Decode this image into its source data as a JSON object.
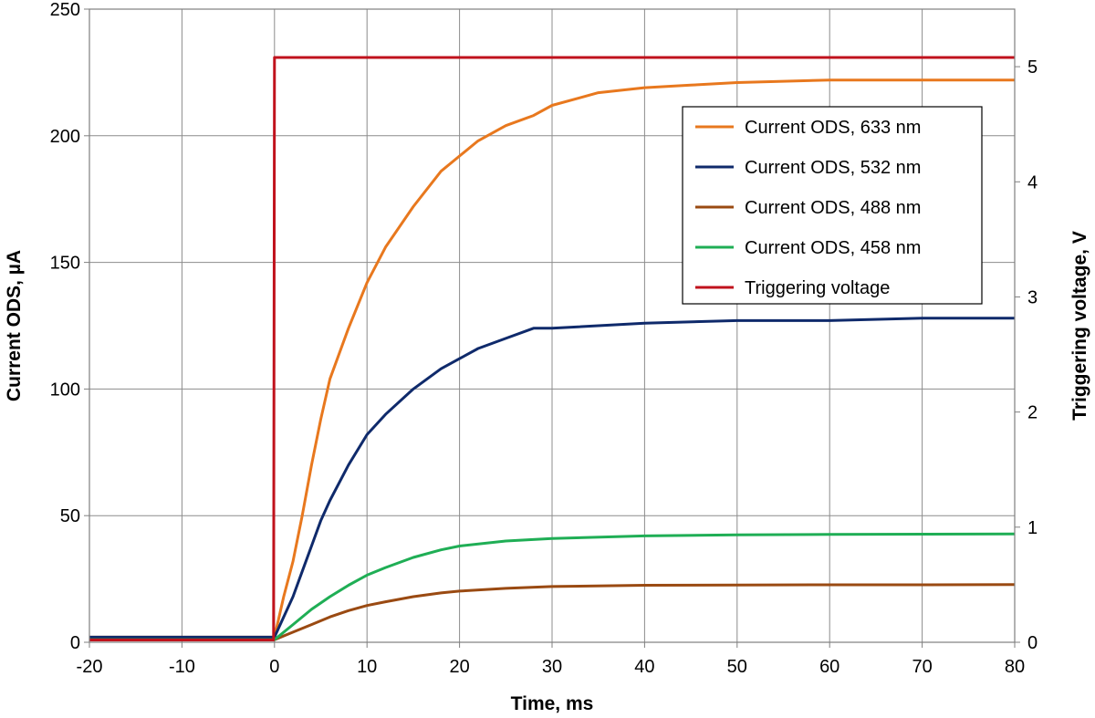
{
  "chart_data": {
    "type": "line",
    "xlabel": "Time, ms",
    "ylabel_left": "Current ODS, µA",
    "ylabel_right": "Triggering voltage, V",
    "xlim": [
      -20,
      80
    ],
    "ylim_left": [
      0,
      250
    ],
    "ylim_right": [
      0,
      5.5
    ],
    "x_ticks": [
      "-20",
      "-10",
      "0",
      "10",
      "20",
      "30",
      "40",
      "50",
      "60",
      "70",
      "80"
    ],
    "y_left_ticks": [
      "0",
      "50",
      "100",
      "150",
      "200",
      "250"
    ],
    "y_right_ticks": [
      "0",
      "1",
      "2",
      "3",
      "4",
      "5"
    ],
    "grid": true,
    "legend_position": "right",
    "series": [
      {
        "name": "Current ODS, 633 nm",
        "axis": "left",
        "color": "#e8781e",
        "x": [
          -20,
          -1,
          0,
          1,
          2,
          3,
          4,
          5,
          6,
          8,
          10,
          12,
          15,
          18,
          20,
          22,
          25,
          28,
          30,
          33,
          35,
          40,
          45,
          50,
          60,
          70,
          80
        ],
        "values": [
          2,
          2,
          2,
          18,
          32,
          50,
          70,
          88,
          104,
          124,
          142,
          156,
          172,
          186,
          192,
          198,
          204,
          208,
          212,
          215,
          217,
          219,
          220,
          221,
          222,
          222,
          222
        ]
      },
      {
        "name": "Current ODS, 532 nm",
        "axis": "left",
        "color": "#0f2a6b",
        "x": [
          -20,
          -1,
          0,
          1,
          2,
          3,
          4,
          5,
          6,
          8,
          10,
          12,
          15,
          18,
          20,
          22,
          25,
          28,
          30,
          40,
          50,
          60,
          70,
          80
        ],
        "values": [
          2,
          2,
          2,
          10,
          18,
          28,
          38,
          48,
          56,
          70,
          82,
          90,
          100,
          108,
          112,
          116,
          120,
          124,
          124,
          126,
          127,
          127,
          128,
          128
        ]
      },
      {
        "name": "Current ODS, 488 nm",
        "axis": "left",
        "color": "#9a4a12",
        "x": [
          -20,
          -1,
          0,
          2,
          4,
          6,
          8,
          10,
          12,
          15,
          18,
          20,
          25,
          30,
          40,
          50,
          60,
          70,
          80
        ],
        "values": [
          1,
          1,
          1,
          4,
          7,
          10,
          12.5,
          14.5,
          16,
          18,
          19.5,
          20.2,
          21.3,
          22,
          22.5,
          22.6,
          22.7,
          22.7,
          22.8
        ]
      },
      {
        "name": "Current ODS, 458 nm",
        "axis": "left",
        "color": "#1fae55",
        "x": [
          -20,
          -1,
          0,
          2,
          4,
          6,
          8,
          10,
          12,
          15,
          18,
          20,
          25,
          30,
          40,
          50,
          60,
          70,
          80
        ],
        "values": [
          1,
          1,
          1,
          7,
          13,
          18,
          22.5,
          26.5,
          29.5,
          33.5,
          36.5,
          38,
          40,
          41,
          42,
          42.4,
          42.6,
          42.7,
          42.8
        ]
      },
      {
        "name": "Triggering voltage",
        "axis": "right",
        "color": "#c0121c",
        "x": [
          -20,
          -0.1,
          0,
          80
        ],
        "values": [
          0.02,
          0.02,
          5.08,
          5.08
        ]
      }
    ]
  }
}
